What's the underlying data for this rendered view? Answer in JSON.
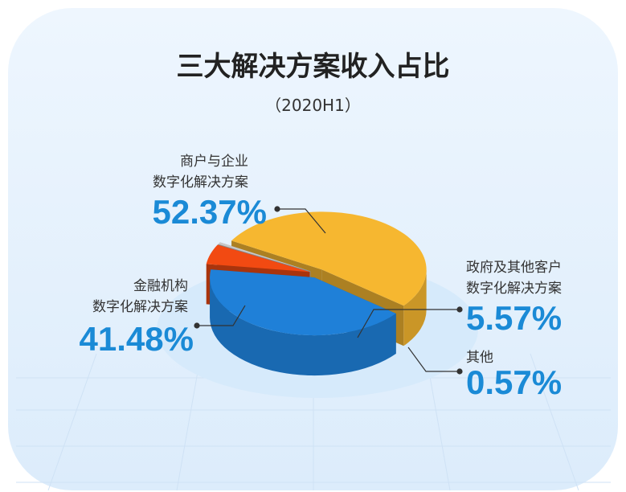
{
  "chart_data": {
    "type": "pie",
    "title": "三大解决方案收入占比",
    "subtitle": "（2020H1）",
    "categories": [
      "商户与企业\n数字化解决方案",
      "金融机构\n数字化解决方案",
      "政府及其他客户\n数字化解决方案",
      "其他"
    ],
    "values": [
      52.37,
      41.48,
      5.57,
      0.57
    ],
    "value_labels": [
      "52.37%",
      "41.48%",
      "5.57%",
      "0.57%"
    ],
    "colors": [
      "#f6b730",
      "#1f80d8",
      "#f24a12",
      "#c8c8c8"
    ]
  }
}
